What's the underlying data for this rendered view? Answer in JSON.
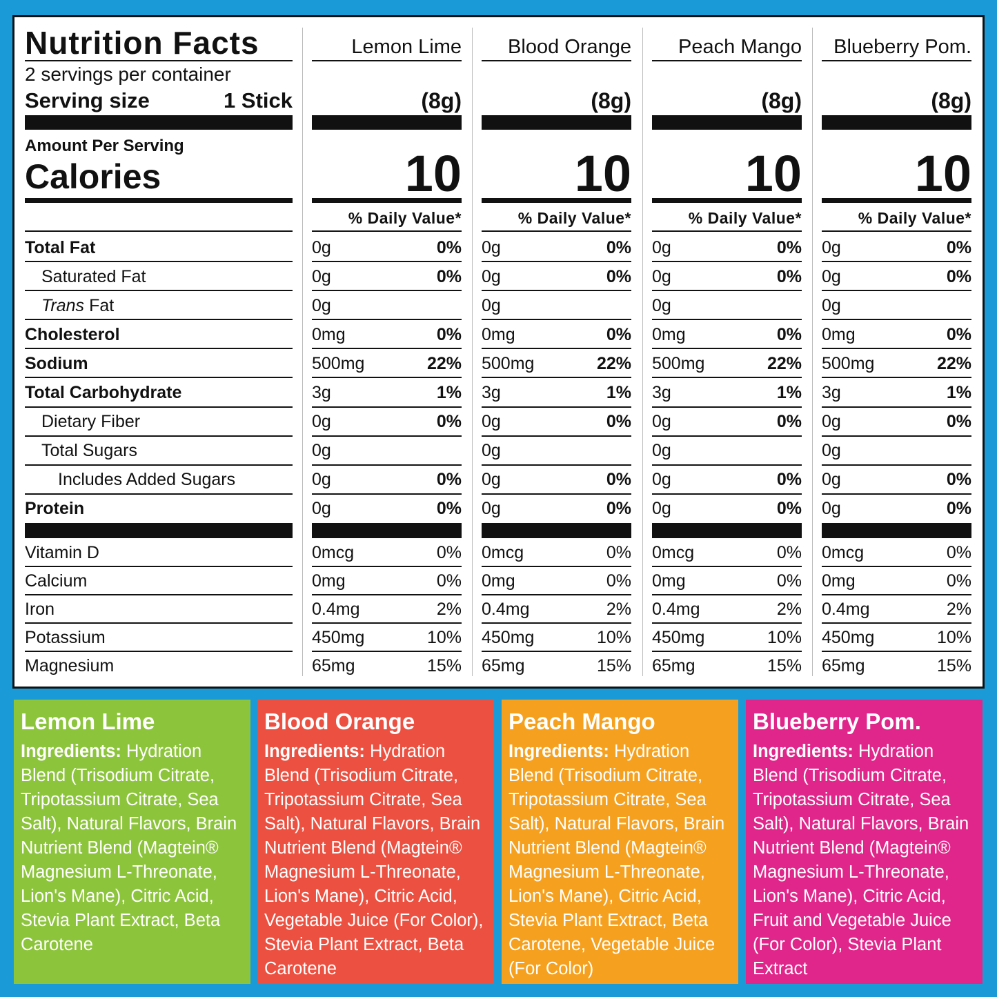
{
  "nutrition": {
    "title": "Nutrition Facts",
    "servings": "2 servings per container",
    "serving_size_label": "Serving size",
    "serving_size": "1 Stick",
    "amount_per_serving": "Amount Per Serving",
    "calories_label": "Calories",
    "nutrient_rows": [
      {
        "label": "Total Fat",
        "weight": "bold",
        "indent": 0
      },
      {
        "label": "Saturated Fat",
        "weight": "normal",
        "indent": 1
      },
      {
        "label_italic": "Trans",
        "label": "Fat",
        "weight": "normal",
        "indent": 1
      },
      {
        "label": "Cholesterol",
        "weight": "bold",
        "indent": 0
      },
      {
        "label": "Sodium",
        "weight": "bold",
        "indent": 0
      },
      {
        "label": "Total Carbohydrate",
        "weight": "bold",
        "indent": 0
      },
      {
        "label": "Dietary Fiber",
        "weight": "normal",
        "indent": 1
      },
      {
        "label": "Total Sugars",
        "weight": "normal",
        "indent": 1
      },
      {
        "label": "Includes Added Sugars",
        "weight": "normal",
        "indent": 2
      },
      {
        "label": "Protein",
        "weight": "bold",
        "indent": 0
      }
    ],
    "mineral_rows": [
      "Vitamin D",
      "Calcium",
      "Iron",
      "Potassium",
      "Magnesium"
    ],
    "flavors": [
      {
        "name": "Lemon Lime",
        "serving": "(8g)",
        "calories": "10",
        "dv_header": "% Daily Value*",
        "nutrients": [
          [
            "0g",
            "0%"
          ],
          [
            "0g",
            "0%"
          ],
          [
            "0g",
            null
          ],
          [
            "0mg",
            "0%"
          ],
          [
            "500mg",
            "22%"
          ],
          [
            "3g",
            "1%"
          ],
          [
            "0g",
            "0%"
          ],
          [
            "0g",
            null
          ],
          [
            "0g",
            "0%"
          ],
          [
            "0g",
            "0%"
          ]
        ],
        "minerals": [
          [
            "0mcg",
            "0%"
          ],
          [
            "0mg",
            "0%"
          ],
          [
            "0.4mg",
            "2%"
          ],
          [
            "450mg",
            "10%"
          ],
          [
            "65mg",
            "15%"
          ]
        ]
      },
      {
        "name": "Blood Orange",
        "serving": "(8g)",
        "calories": "10",
        "dv_header": "% Daily Value*",
        "nutrients": [
          [
            "0g",
            "0%"
          ],
          [
            "0g",
            "0%"
          ],
          [
            "0g",
            null
          ],
          [
            "0mg",
            "0%"
          ],
          [
            "500mg",
            "22%"
          ],
          [
            "3g",
            "1%"
          ],
          [
            "0g",
            "0%"
          ],
          [
            "0g",
            null
          ],
          [
            "0g",
            "0%"
          ],
          [
            "0g",
            "0%"
          ]
        ],
        "minerals": [
          [
            "0mcg",
            "0%"
          ],
          [
            "0mg",
            "0%"
          ],
          [
            "0.4mg",
            "2%"
          ],
          [
            "450mg",
            "10%"
          ],
          [
            "65mg",
            "15%"
          ]
        ]
      },
      {
        "name": "Peach Mango",
        "serving": "(8g)",
        "calories": "10",
        "dv_header": "% Daily Value*",
        "nutrients": [
          [
            "0g",
            "0%"
          ],
          [
            "0g",
            "0%"
          ],
          [
            "0g",
            null
          ],
          [
            "0mg",
            "0%"
          ],
          [
            "500mg",
            "22%"
          ],
          [
            "3g",
            "1%"
          ],
          [
            "0g",
            "0%"
          ],
          [
            "0g",
            null
          ],
          [
            "0g",
            "0%"
          ],
          [
            "0g",
            "0%"
          ]
        ],
        "minerals": [
          [
            "0mcg",
            "0%"
          ],
          [
            "0mg",
            "0%"
          ],
          [
            "0.4mg",
            "2%"
          ],
          [
            "450mg",
            "10%"
          ],
          [
            "65mg",
            "15%"
          ]
        ]
      },
      {
        "name": "Blueberry Pom.",
        "serving": "(8g)",
        "calories": "10",
        "dv_header": "% Daily Value*",
        "nutrients": [
          [
            "0g",
            "0%"
          ],
          [
            "0g",
            "0%"
          ],
          [
            "0g",
            null
          ],
          [
            "0mg",
            "0%"
          ],
          [
            "500mg",
            "22%"
          ],
          [
            "3g",
            "1%"
          ],
          [
            "0g",
            "0%"
          ],
          [
            "0g",
            null
          ],
          [
            "0g",
            "0%"
          ],
          [
            "0g",
            "0%"
          ]
        ],
        "minerals": [
          [
            "0mcg",
            "0%"
          ],
          [
            "0mg",
            "0%"
          ],
          [
            "0.4mg",
            "2%"
          ],
          [
            "450mg",
            "10%"
          ],
          [
            "65mg",
            "15%"
          ]
        ]
      }
    ]
  },
  "ingredients": [
    {
      "name": "Lemon Lime",
      "color": "#8cc43c",
      "label": "Ingredients:",
      "text": "Hydration Blend (Trisodium Citrate, Tripotassium Citrate, Sea Salt), Natural Flavors, Brain Nutrient Blend (Magtein® Magnesium L-Threonate, Lion's Mane), Citric Acid, Stevia Plant Extract, Beta Carotene"
    },
    {
      "name": "Blood Orange",
      "color": "#ec5040",
      "label": "Ingredients:",
      "text": "Hydration Blend (Trisodium Citrate, Tripotassium Citrate, Sea Salt), Natural Flavors, Brain Nutrient Blend (Magtein® Magnesium L-Threonate, Lion's Mane), Citric Acid, Vegetable Juice (For Color), Stevia Plant Extract, Beta Carotene"
    },
    {
      "name": "Peach Mango",
      "color": "#f5a01e",
      "label": "Ingredients:",
      "text": "Hydration Blend (Trisodium Citrate, Tripotassium Citrate, Sea Salt), Natural Flavors, Brain Nutrient Blend (Magtein® Magnesium L-Threonate, Lion's Mane), Citric Acid, Stevia Plant Extract, Beta Carotene, Vegetable Juice (For Color)"
    },
    {
      "name": "Blueberry Pom.",
      "color": "#e0268a",
      "label": "Ingredients:",
      "text": "Hydration Blend (Trisodium Citrate, Tripotassium Citrate, Sea Salt), Natural Flavors, Brain Nutrient Blend (Magtein® Magnesium L-Threonate, Lion's Mane), Citric Acid, Fruit and Vegetable Juice (For Color), Stevia Plant Extract"
    }
  ]
}
